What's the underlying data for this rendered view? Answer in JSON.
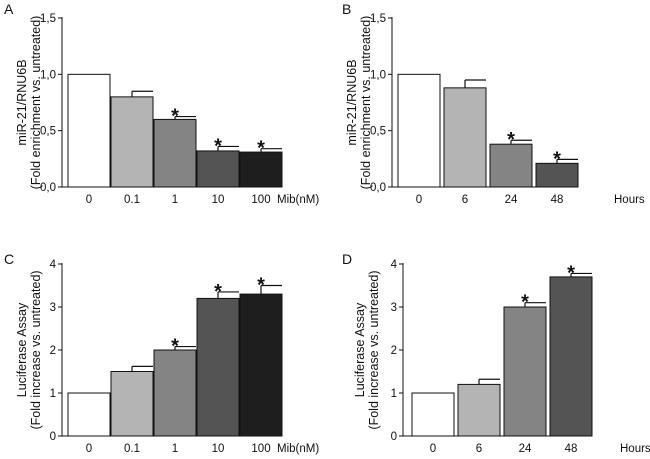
{
  "chart_data": [
    {
      "panel": "A",
      "type": "bar",
      "categories": [
        "0",
        "0.1",
        "1",
        "10",
        "100"
      ],
      "x_unit": "Mib(nM)",
      "values": [
        1.0,
        0.8,
        0.6,
        0.32,
        0.31
      ],
      "errors": [
        0.0,
        0.05,
        0.025,
        0.04,
        0.03
      ],
      "significant": [
        false,
        false,
        true,
        true,
        true
      ],
      "colors": [
        "#ffffff",
        "#b4b4b4",
        "#848484",
        "#545454",
        "#1e1e1e"
      ],
      "ylabel_line1": "miR-21/RNU6B",
      "ylabel_line2": "(Fold enrichment vs. untreated)",
      "yticks": [
        "0,0",
        "0,5",
        "1,0",
        "1,5"
      ],
      "ylim": [
        0,
        1.5
      ]
    },
    {
      "panel": "B",
      "type": "bar",
      "categories": [
        "0",
        "6",
        "24",
        "48"
      ],
      "x_unit": "Hours",
      "values": [
        1.0,
        0.88,
        0.38,
        0.21
      ],
      "errors": [
        0.0,
        0.07,
        0.035,
        0.035
      ],
      "significant": [
        false,
        false,
        true,
        true
      ],
      "colors": [
        "#ffffff",
        "#b4b4b4",
        "#848484",
        "#545454"
      ],
      "ylabel_line1": "miR-21/RNU6B",
      "ylabel_line2": "(Fold enrichment vs. untreated)",
      "yticks": [
        "0,0",
        "0,5",
        "1,0",
        "1,5"
      ],
      "ylim": [
        0,
        1.5
      ]
    },
    {
      "panel": "C",
      "type": "bar",
      "categories": [
        "0",
        "0.1",
        "1",
        "10",
        "100"
      ],
      "x_unit": "Mib(nM)",
      "values": [
        1.0,
        1.5,
        2.0,
        3.2,
        3.3
      ],
      "errors": [
        0.0,
        0.12,
        0.08,
        0.15,
        0.2
      ],
      "significant": [
        false,
        false,
        true,
        true,
        true
      ],
      "colors": [
        "#ffffff",
        "#b4b4b4",
        "#848484",
        "#545454",
        "#1e1e1e"
      ],
      "ylabel_line1": "Luciferase Assay",
      "ylabel_line2": "(Fold increase vs. untreated)",
      "yticks": [
        "0",
        "1",
        "2",
        "3",
        "4"
      ],
      "ylim": [
        0,
        4
      ]
    },
    {
      "panel": "D",
      "type": "bar",
      "categories": [
        "0",
        "6",
        "24",
        "48"
      ],
      "x_unit": "Hours",
      "values": [
        1.0,
        1.2,
        3.0,
        3.7
      ],
      "errors": [
        0.0,
        0.12,
        0.1,
        0.08
      ],
      "significant": [
        false,
        false,
        true,
        true
      ],
      "colors": [
        "#ffffff",
        "#b4b4b4",
        "#848484",
        "#545454"
      ],
      "ylabel_line1": "Luciferase Assay",
      "ylabel_line2": "(Fold increase vs. untreated)",
      "yticks": [
        "0",
        "1",
        "2",
        "3",
        "4"
      ],
      "ylim": [
        0,
        4
      ]
    }
  ],
  "significance_marker": "*"
}
